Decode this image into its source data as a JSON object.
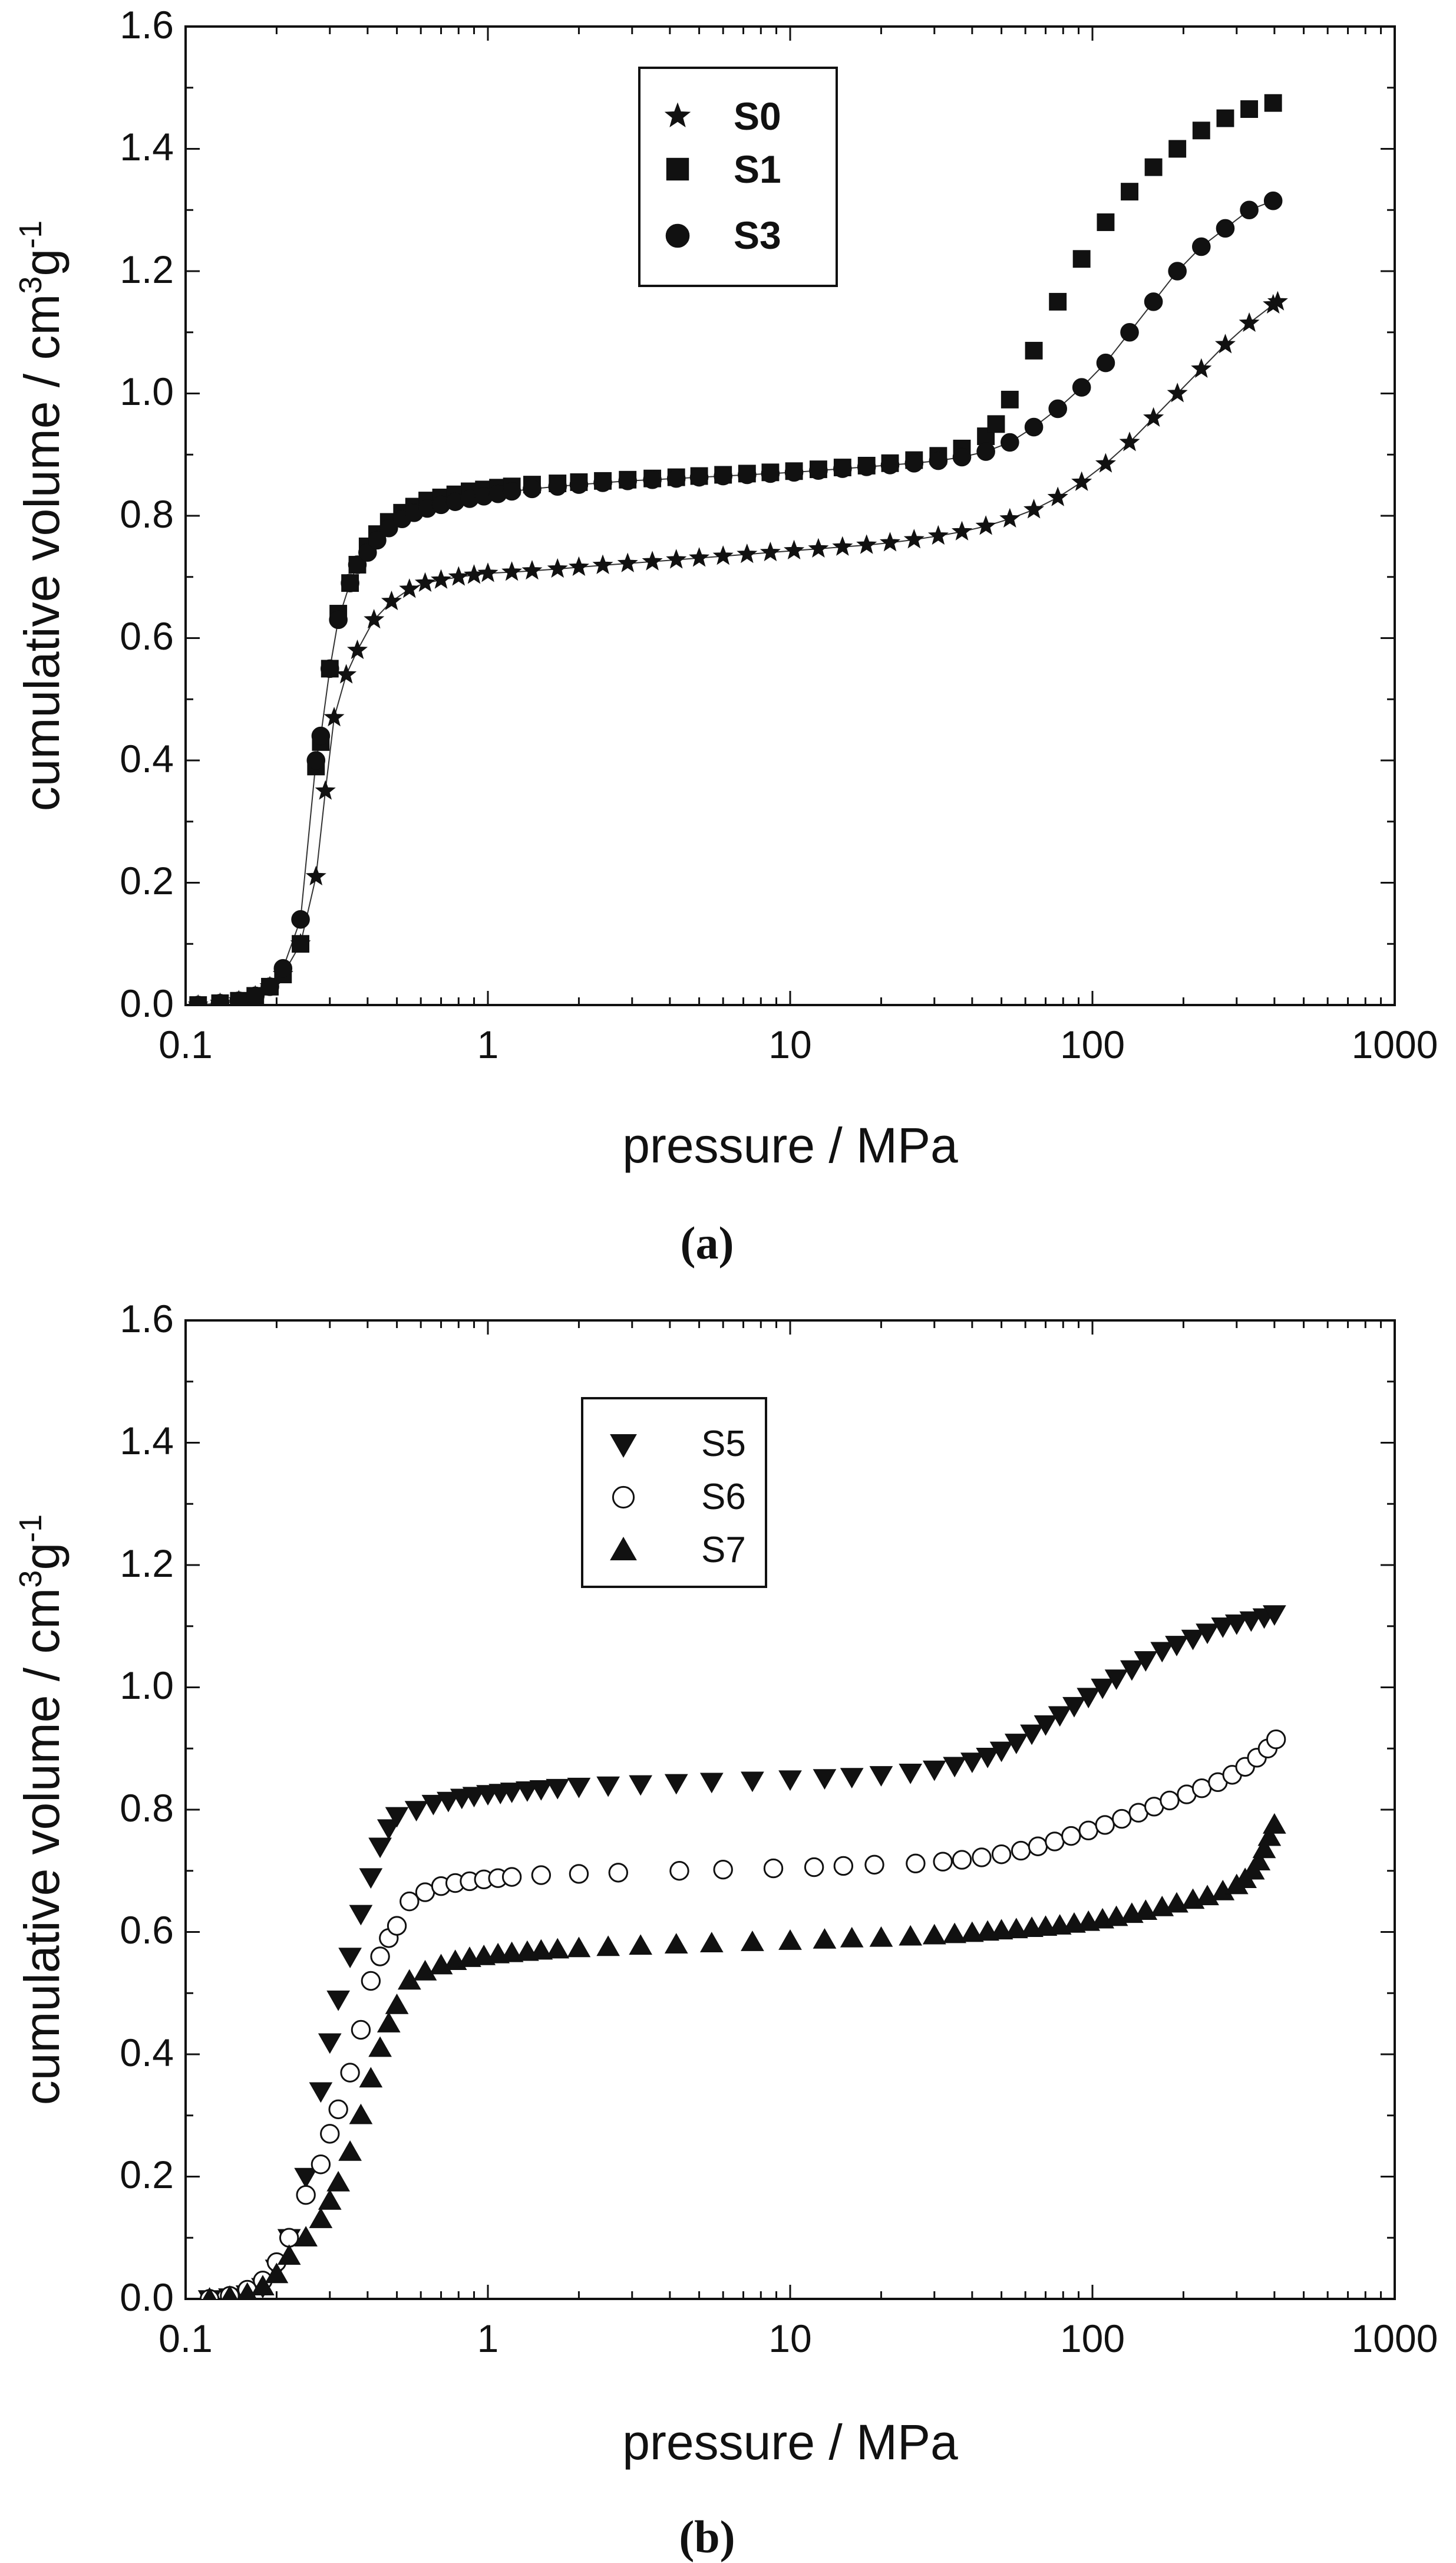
{
  "chart_data": [
    {
      "type": "scatter",
      "caption": "(a)",
      "xlabel": "pressure / MPa",
      "ylabel_main": "cumulative volume / cm",
      "ylabel_sup1": "3",
      "ylabel_g": "g",
      "ylabel_sup2": "-1",
      "xscale": "log",
      "xlim": [
        0.1,
        1000
      ],
      "ylim": [
        0.0,
        1.6
      ],
      "x_ticks": [
        "0.1",
        "1",
        "10",
        "100",
        "1000"
      ],
      "y_ticks": [
        "0.0",
        "0.2",
        "0.4",
        "0.6",
        "0.8",
        "1.0",
        "1.2",
        "1.4",
        "1.6"
      ],
      "legend_position": "top-center",
      "legend_bold": true,
      "series": [
        {
          "name": "S0",
          "marker": "star",
          "filled": true,
          "connected": true,
          "x": [
            0.11,
            0.13,
            0.15,
            0.17,
            0.19,
            0.21,
            0.24,
            0.27,
            0.29,
            0.31,
            0.34,
            0.37,
            0.42,
            0.48,
            0.55,
            0.62,
            0.7,
            0.8,
            0.9,
            1.0,
            1.2,
            1.4,
            1.7,
            2.0,
            2.4,
            2.9,
            3.5,
            4.2,
            5.0,
            6.0,
            7.2,
            8.6,
            10.3,
            12.4,
            14.9,
            17.9,
            21.4,
            25.7,
            30.9,
            37.0,
            44.4,
            53.3,
            64.0,
            76.8,
            92.1,
            110.6,
            132.7,
            159.2,
            191.0,
            229.2,
            275.1,
            330.1,
            396.1,
            410
          ],
          "y": [
            0.0,
            0.003,
            0.007,
            0.015,
            0.03,
            0.05,
            0.1,
            0.21,
            0.35,
            0.47,
            0.54,
            0.58,
            0.63,
            0.66,
            0.68,
            0.69,
            0.695,
            0.7,
            0.703,
            0.706,
            0.708,
            0.71,
            0.713,
            0.716,
            0.719,
            0.722,
            0.725,
            0.728,
            0.731,
            0.734,
            0.737,
            0.74,
            0.743,
            0.746,
            0.749,
            0.752,
            0.756,
            0.761,
            0.767,
            0.774,
            0.783,
            0.795,
            0.81,
            0.83,
            0.855,
            0.885,
            0.92,
            0.96,
            1.0,
            1.04,
            1.08,
            1.115,
            1.145,
            1.15
          ]
        },
        {
          "name": "S1",
          "marker": "square",
          "filled": true,
          "connected": false,
          "x": [
            0.11,
            0.13,
            0.15,
            0.17,
            0.19,
            0.21,
            0.24,
            0.27,
            0.28,
            0.3,
            0.32,
            0.35,
            0.37,
            0.4,
            0.43,
            0.47,
            0.52,
            0.57,
            0.63,
            0.7,
            0.78,
            0.87,
            0.97,
            1.08,
            1.2,
            1.4,
            1.7,
            2.0,
            2.4,
            2.9,
            3.5,
            4.2,
            5.0,
            6.0,
            7.2,
            8.6,
            10.3,
            12.4,
            14.9,
            17.9,
            21.4,
            25.7,
            30.9,
            37.0,
            44.4,
            48.0,
            53.3,
            64.0,
            76.8,
            92.1,
            110.6,
            132.7,
            159.2,
            191.0,
            229.2,
            275.1,
            330.1,
            396.1
          ],
          "y": [
            0.0,
            0.003,
            0.007,
            0.015,
            0.03,
            0.05,
            0.1,
            0.39,
            0.43,
            0.55,
            0.64,
            0.69,
            0.72,
            0.75,
            0.77,
            0.79,
            0.805,
            0.815,
            0.825,
            0.83,
            0.835,
            0.84,
            0.843,
            0.846,
            0.848,
            0.851,
            0.853,
            0.855,
            0.857,
            0.859,
            0.861,
            0.863,
            0.865,
            0.867,
            0.869,
            0.871,
            0.873,
            0.876,
            0.879,
            0.882,
            0.886,
            0.891,
            0.898,
            0.91,
            0.93,
            0.95,
            0.99,
            1.07,
            1.15,
            1.22,
            1.28,
            1.33,
            1.37,
            1.4,
            1.43,
            1.45,
            1.465,
            1.475
          ]
        },
        {
          "name": "S3",
          "marker": "circle",
          "filled": true,
          "connected": true,
          "x": [
            0.11,
            0.13,
            0.15,
            0.17,
            0.19,
            0.21,
            0.24,
            0.27,
            0.28,
            0.3,
            0.32,
            0.35,
            0.37,
            0.4,
            0.43,
            0.47,
            0.52,
            0.57,
            0.63,
            0.7,
            0.78,
            0.87,
            0.97,
            1.08,
            1.2,
            1.4,
            1.7,
            2.0,
            2.4,
            2.9,
            3.5,
            4.2,
            5.0,
            6.0,
            7.2,
            8.6,
            10.3,
            12.4,
            14.9,
            17.9,
            21.4,
            25.7,
            30.9,
            37.0,
            44.4,
            53.3,
            64.0,
            76.8,
            92.1,
            110.6,
            132.7,
            159.2,
            191.0,
            229.2,
            275.1,
            330.1,
            396.1
          ],
          "y": [
            0.0,
            0.003,
            0.007,
            0.015,
            0.03,
            0.06,
            0.14,
            0.4,
            0.44,
            0.55,
            0.63,
            0.69,
            0.72,
            0.74,
            0.76,
            0.78,
            0.795,
            0.805,
            0.812,
            0.818,
            0.823,
            0.828,
            0.832,
            0.836,
            0.84,
            0.844,
            0.848,
            0.851,
            0.854,
            0.857,
            0.859,
            0.861,
            0.863,
            0.865,
            0.867,
            0.869,
            0.871,
            0.874,
            0.877,
            0.88,
            0.883,
            0.886,
            0.89,
            0.896,
            0.905,
            0.92,
            0.945,
            0.975,
            1.01,
            1.05,
            1.1,
            1.15,
            1.2,
            1.24,
            1.27,
            1.3,
            1.315
          ]
        }
      ]
    },
    {
      "type": "scatter",
      "caption": "(b)",
      "xlabel": "pressure / MPa",
      "ylabel_main": "cumulative volume / cm",
      "ylabel_sup1": "3",
      "ylabel_g": "g",
      "ylabel_sup2": "-1",
      "xscale": "log",
      "xlim": [
        0.1,
        1000
      ],
      "ylim": [
        0.0,
        1.6
      ],
      "x_ticks": [
        "0.1",
        "1",
        "10",
        "100",
        "1000"
      ],
      "y_ticks": [
        "0.0",
        "0.2",
        "0.4",
        "0.6",
        "0.8",
        "1.0",
        "1.2",
        "1.4",
        "1.6"
      ],
      "legend_position": "top-left",
      "legend_bold": false,
      "series": [
        {
          "name": "S5",
          "marker": "triangle-down",
          "filled": true,
          "connected": false,
          "x": [
            0.12,
            0.14,
            0.16,
            0.18,
            0.2,
            0.22,
            0.25,
            0.28,
            0.3,
            0.32,
            0.35,
            0.38,
            0.41,
            0.44,
            0.47,
            0.5,
            0.58,
            0.66,
            0.74,
            0.82,
            0.9,
            1.0,
            1.1,
            1.2,
            1.35,
            1.5,
            1.7,
            2.0,
            2.5,
            3.2,
            4.2,
            5.5,
            7.5,
            10.0,
            13.0,
            16.0,
            20.0,
            25.0,
            30.0,
            35.0,
            40.0,
            45.0,
            50.0,
            56.0,
            63.0,
            70.0,
            78.0,
            87.0,
            97.0,
            108.0,
            120.0,
            135.0,
            150.0,
            170.0,
            190.0,
            215.0,
            240.0,
            270.0,
            300.0,
            335.0,
            370.0,
            400.0
          ],
          "y": [
            0.0,
            0.003,
            0.008,
            0.02,
            0.05,
            0.1,
            0.2,
            0.34,
            0.42,
            0.49,
            0.56,
            0.63,
            0.69,
            0.74,
            0.77,
            0.79,
            0.8,
            0.81,
            0.815,
            0.82,
            0.823,
            0.826,
            0.828,
            0.83,
            0.832,
            0.834,
            0.836,
            0.838,
            0.84,
            0.842,
            0.844,
            0.846,
            0.848,
            0.85,
            0.852,
            0.854,
            0.857,
            0.861,
            0.866,
            0.872,
            0.879,
            0.887,
            0.897,
            0.91,
            0.925,
            0.94,
            0.955,
            0.97,
            0.985,
            1.0,
            1.015,
            1.03,
            1.045,
            1.06,
            1.07,
            1.08,
            1.09,
            1.1,
            1.105,
            1.11,
            1.115,
            1.12
          ]
        },
        {
          "name": "S6",
          "marker": "circle",
          "filled": false,
          "connected": false,
          "x": [
            0.12,
            0.14,
            0.16,
            0.18,
            0.2,
            0.22,
            0.25,
            0.28,
            0.3,
            0.32,
            0.35,
            0.38,
            0.41,
            0.44,
            0.47,
            0.5,
            0.55,
            0.62,
            0.7,
            0.78,
            0.87,
            0.97,
            1.08,
            1.2,
            1.5,
            2.0,
            2.7,
            4.3,
            6.0,
            8.8,
            12.0,
            15.0,
            19.0,
            26.0,
            32.0,
            37.0,
            43.0,
            50.0,
            58.0,
            66.0,
            75.0,
            85.0,
            97.0,
            110.0,
            125.0,
            142.0,
            160.0,
            180.0,
            205.0,
            230.0,
            260.0,
            290.0,
            320.0,
            350.0,
            380.0,
            405.0
          ],
          "y": [
            0.0,
            0.005,
            0.015,
            0.03,
            0.06,
            0.1,
            0.17,
            0.22,
            0.27,
            0.31,
            0.37,
            0.44,
            0.52,
            0.56,
            0.59,
            0.61,
            0.65,
            0.665,
            0.675,
            0.68,
            0.683,
            0.686,
            0.688,
            0.69,
            0.693,
            0.695,
            0.697,
            0.7,
            0.702,
            0.704,
            0.706,
            0.708,
            0.71,
            0.712,
            0.715,
            0.718,
            0.722,
            0.727,
            0.733,
            0.74,
            0.748,
            0.757,
            0.766,
            0.775,
            0.785,
            0.795,
            0.805,
            0.815,
            0.825,
            0.835,
            0.845,
            0.857,
            0.87,
            0.885,
            0.9,
            0.915
          ]
        },
        {
          "name": "S7",
          "marker": "triangle-up",
          "filled": true,
          "connected": false,
          "x": [
            0.12,
            0.14,
            0.16,
            0.18,
            0.2,
            0.22,
            0.25,
            0.28,
            0.3,
            0.32,
            0.35,
            0.38,
            0.41,
            0.44,
            0.47,
            0.5,
            0.55,
            0.62,
            0.7,
            0.78,
            0.87,
            0.97,
            1.08,
            1.2,
            1.35,
            1.5,
            1.7,
            2.0,
            2.5,
            3.2,
            4.2,
            5.5,
            7.5,
            10.0,
            13.0,
            16.0,
            20.0,
            25.0,
            30.0,
            35.0,
            40.0,
            45.0,
            50.0,
            56.0,
            63.0,
            70.0,
            78.0,
            87.0,
            97.0,
            108.0,
            120.0,
            135.0,
            150.0,
            170.0,
            190.0,
            215.0,
            240.0,
            270.0,
            300.0,
            320.0,
            340.0,
            355.0,
            370.0,
            385.0,
            400.0
          ],
          "y": [
            0.0,
            0.003,
            0.008,
            0.02,
            0.04,
            0.07,
            0.1,
            0.13,
            0.16,
            0.19,
            0.24,
            0.3,
            0.36,
            0.41,
            0.45,
            0.48,
            0.52,
            0.535,
            0.545,
            0.552,
            0.557,
            0.56,
            0.563,
            0.565,
            0.567,
            0.569,
            0.571,
            0.573,
            0.575,
            0.577,
            0.579,
            0.581,
            0.583,
            0.585,
            0.587,
            0.589,
            0.59,
            0.592,
            0.594,
            0.596,
            0.598,
            0.6,
            0.602,
            0.604,
            0.606,
            0.608,
            0.61,
            0.613,
            0.616,
            0.62,
            0.624,
            0.629,
            0.634,
            0.64,
            0.646,
            0.652,
            0.658,
            0.666,
            0.676,
            0.686,
            0.7,
            0.715,
            0.735,
            0.755,
            0.775
          ]
        }
      ]
    }
  ]
}
